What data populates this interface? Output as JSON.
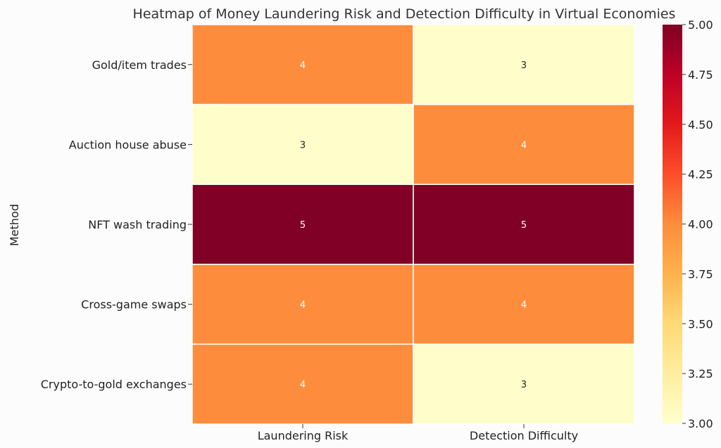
{
  "chart_data": {
    "type": "heatmap",
    "title": "Heatmap of Money Laundering Risk and Detection Difficulty in Virtual Economies",
    "ylabel": "Method",
    "xlabel": "",
    "rows": [
      "Gold/item trades",
      "Auction house abuse",
      "NFT wash trading",
      "Cross-game swaps",
      "Crypto-to-gold exchanges"
    ],
    "columns": [
      "Laundering Risk",
      "Detection Difficulty"
    ],
    "values": [
      [
        4,
        3
      ],
      [
        3,
        4
      ],
      [
        5,
        5
      ],
      [
        4,
        4
      ],
      [
        4,
        3
      ]
    ],
    "colorbar": {
      "range": [
        3.0,
        5.0
      ],
      "ticks": [
        "3.00",
        "3.25",
        "3.50",
        "3.75",
        "4.00",
        "4.25",
        "4.50",
        "4.75",
        "5.00"
      ],
      "colormap": "YlOrRd"
    },
    "colors": {
      "3": "#fffdc9",
      "4": "#fd8d3c",
      "5": "#800026"
    },
    "annotations": true
  }
}
